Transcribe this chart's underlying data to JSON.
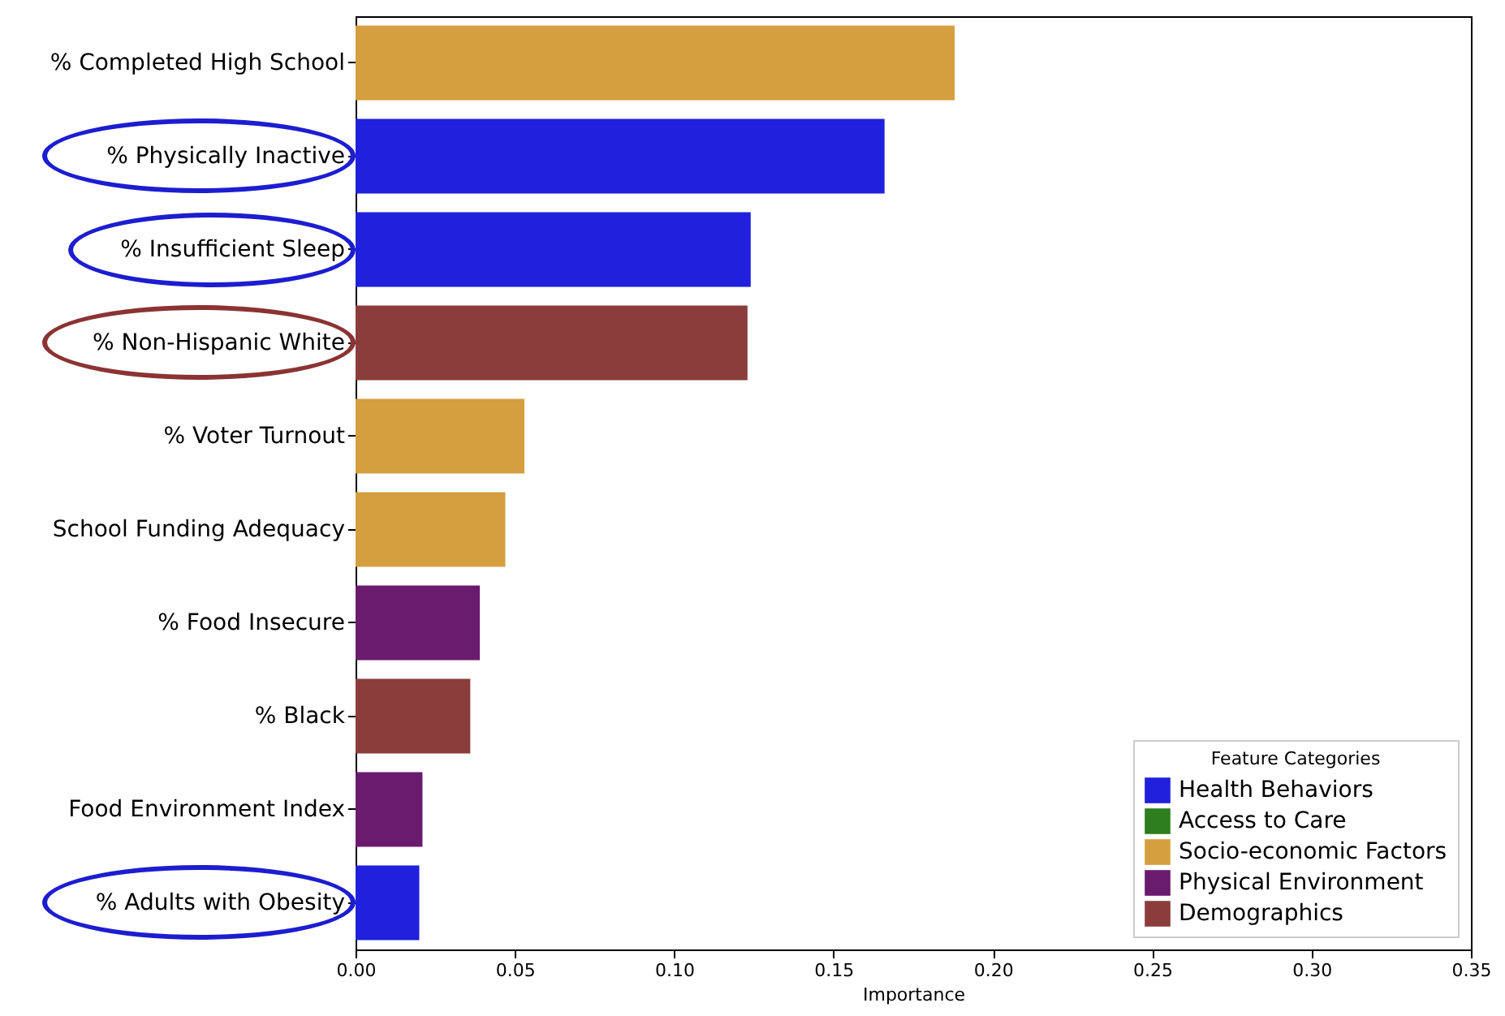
{
  "chart_data": {
    "type": "bar",
    "orientation": "horizontal",
    "xlabel": "Importance",
    "legend_title": "Feature Categories",
    "legend": "bottom right",
    "grid": false,
    "categories": [
      "% Completed High School",
      "% Physically Inactive",
      "% Insufficient Sleep",
      "% Non-Hispanic White",
      "% Voter Turnout",
      "School Funding Adequacy",
      "% Food Insecure",
      "% Black",
      "Food Environment Index",
      "% Adults with Obesity"
    ],
    "xlim": [
      0,
      0.35
    ],
    "xticks": [
      {
        "value": 0,
        "label": "0.00"
      },
      {
        "value": 0.05,
        "label": "0.05"
      },
      {
        "value": 0.1,
        "label": "0.10"
      },
      {
        "value": 0.15,
        "label": "0.15"
      },
      {
        "value": 0.2,
        "label": "0.20"
      },
      {
        "value": 0.25,
        "label": "0.25"
      },
      {
        "value": 0.3,
        "label": "0.30"
      },
      {
        "value": 0.35,
        "label": "0.35"
      }
    ],
    "series": [
      {
        "name": "Health Behaviors",
        "color": "#2020dd",
        "values": [
          null,
          0.166,
          0.124,
          null,
          null,
          null,
          null,
          null,
          null,
          0.02
        ]
      },
      {
        "name": "Access to Care",
        "color": "#2e7d1e",
        "values": [
          null,
          null,
          null,
          null,
          null,
          null,
          null,
          null,
          null,
          null
        ]
      },
      {
        "name": "Socio-economic Factors",
        "color": "#d59f3f",
        "values": [
          0.188,
          null,
          null,
          null,
          0.053,
          0.047,
          null,
          null,
          null,
          null
        ]
      },
      {
        "name": "Physical Environment",
        "color": "#6a1b6e",
        "values": [
          null,
          null,
          null,
          null,
          null,
          null,
          0.039,
          null,
          0.021,
          null
        ]
      },
      {
        "name": "Demographics",
        "color": "#8b3d3c",
        "values": [
          null,
          null,
          null,
          0.123,
          null,
          null,
          null,
          0.036,
          null,
          null
        ]
      }
    ]
  }
}
